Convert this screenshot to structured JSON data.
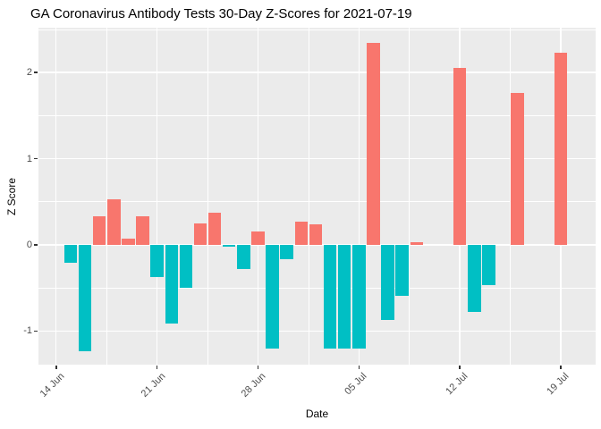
{
  "chart_data": {
    "type": "bar",
    "title": "GA Coronavirus Antibody Tests 30-Day Z-Scores for 2021-07-19",
    "xlabel": "Date",
    "ylabel": "Z Score",
    "x_tick_labels": [
      "14 Jun",
      "21 Jun",
      "28 Jun",
      "05 Jul",
      "12 Jul",
      "19 Jul"
    ],
    "x_tick_dates": [
      "2021-06-14",
      "2021-06-21",
      "2021-06-28",
      "2021-07-05",
      "2021-07-12",
      "2021-07-19"
    ],
    "y_ticks": [
      -1,
      0,
      1,
      2
    ],
    "ylim": [
      -1.39,
      2.52
    ],
    "grid": true,
    "legend": false,
    "colors": {
      "positive": "#F8766D",
      "negative": "#00BFC4",
      "panel_bg": "#EBEBEB",
      "grid": "#FFFFFF",
      "tick": "#333333",
      "tick_text": "#4D4D4D"
    },
    "points": [
      {
        "date": "2021-06-15",
        "value": -0.21
      },
      {
        "date": "2021-06-16",
        "value": -1.23
      },
      {
        "date": "2021-06-17",
        "value": 0.33
      },
      {
        "date": "2021-06-18",
        "value": 0.53
      },
      {
        "date": "2021-06-19",
        "value": 0.07
      },
      {
        "date": "2021-06-20",
        "value": 0.33
      },
      {
        "date": "2021-06-21",
        "value": -0.37
      },
      {
        "date": "2021-06-22",
        "value": -0.91
      },
      {
        "date": "2021-06-23",
        "value": -0.5
      },
      {
        "date": "2021-06-24",
        "value": 0.25
      },
      {
        "date": "2021-06-25",
        "value": 0.37
      },
      {
        "date": "2021-06-26",
        "value": -0.02
      },
      {
        "date": "2021-06-27",
        "value": -0.28
      },
      {
        "date": "2021-06-28",
        "value": 0.16
      },
      {
        "date": "2021-06-29",
        "value": -1.2
      },
      {
        "date": "2021-06-30",
        "value": -0.17
      },
      {
        "date": "2021-07-01",
        "value": 0.27
      },
      {
        "date": "2021-07-02",
        "value": 0.24
      },
      {
        "date": "2021-07-03",
        "value": -1.2
      },
      {
        "date": "2021-07-04",
        "value": -1.2
      },
      {
        "date": "2021-07-05",
        "value": -1.2
      },
      {
        "date": "2021-07-06",
        "value": 2.34
      },
      {
        "date": "2021-07-07",
        "value": -0.87
      },
      {
        "date": "2021-07-08",
        "value": -0.59
      },
      {
        "date": "2021-07-09",
        "value": 0.03
      },
      {
        "date": "2021-07-12",
        "value": 2.05
      },
      {
        "date": "2021-07-13",
        "value": -0.78
      },
      {
        "date": "2021-07-14",
        "value": -0.47
      },
      {
        "date": "2021-07-16",
        "value": 1.76
      },
      {
        "date": "2021-07-19",
        "value": 2.23
      }
    ]
  }
}
